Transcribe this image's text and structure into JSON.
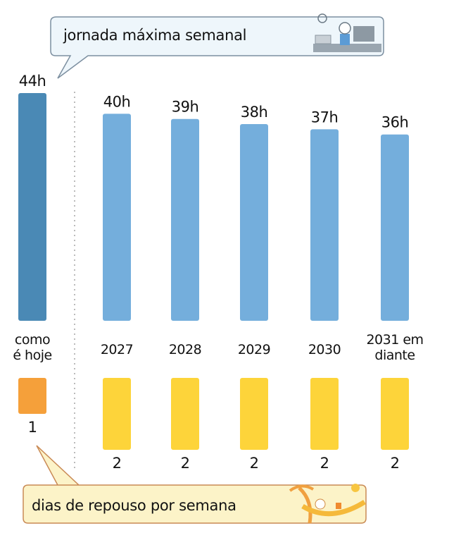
{
  "chart_data": {
    "type": "bar",
    "title": "jornada máxima semanal",
    "subtitle": "dias de repouso por semana",
    "categories": [
      "como é hoje",
      "2027",
      "2028",
      "2029",
      "2030",
      "2031 em diante"
    ],
    "category_lines": [
      [
        "como",
        "é hoje"
      ],
      [
        "2027"
      ],
      [
        "2028"
      ],
      [
        "2029"
      ],
      [
        "2030"
      ],
      [
        "2031 em",
        "diante"
      ]
    ],
    "series": [
      {
        "name": "jornada máxima semanal",
        "unit": "h",
        "values": [
          44,
          40,
          39,
          38,
          37,
          36
        ],
        "labels": [
          "44h",
          "40h",
          "39h",
          "38h",
          "37h",
          "36h"
        ]
      },
      {
        "name": "dias de repouso por semana",
        "values": [
          1,
          2,
          2,
          2,
          2,
          2
        ],
        "labels": [
          "1",
          "2",
          "2",
          "2",
          "2",
          "2"
        ]
      }
    ],
    "ylim": [
      0,
      44
    ],
    "grid": false,
    "colors": {
      "hours_current": "#4A89B5",
      "hours_future": "#74AEDC",
      "rest_current": "#F5A03A",
      "rest_future": "#FDD43A",
      "top_callout_fill": "#EEF6FB",
      "top_callout_stroke": "#7C8FA0",
      "bottom_callout_fill": "#FCF3C8",
      "bottom_callout_stroke": "#C98A55"
    }
  }
}
